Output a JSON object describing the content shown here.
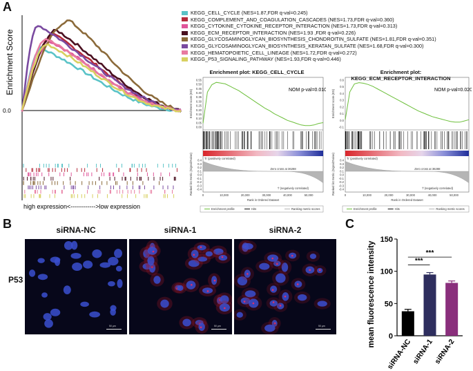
{
  "panels": {
    "a": "A",
    "b": "B",
    "c": "C"
  },
  "panel_a": {
    "ylabel": "Enrichment Score",
    "y_tick": "0.0",
    "xlabel": "high expression<------------>low expression",
    "legend": [
      {
        "label": "KEGG_CELL_CYCLE (NES=1.87,FDR q-val=0.245)",
        "color": "#5ac3c7"
      },
      {
        "label": "KEGG_COMPLEMENT_AND_COAGULATION_CASCADES (NES=1.73,FDR q-val=0.360)",
        "color": "#b52b3c"
      },
      {
        "label": "KEGG_CYTOKINE_CYTOKINE_RECEPTOR_INTERACTION (NES=1.73,FDR q-val=0.313)",
        "color": "#e0559a"
      },
      {
        "label": "KEGG_ECM_RECEPTOR_INTERACTION (NES=1.93 ,FDR q-val=0.226)",
        "color": "#4a1020"
      },
      {
        "label": "KEGG_GLYCOSAMINOGLYCAN_BIOSYNTHESIS_CHONDROITIN_SULFATE (NES=1.81,FDR q-val=0.351)",
        "color": "#8b6a3a"
      },
      {
        "label": "KEGG_GLYCOSAMINOGLYCAN_BIOSYNTHESIS_KERATAN_SULFATE (NES=1.68,FDR q-val=0.300)",
        "color": "#7a4aa0"
      },
      {
        "label": "KEGG_HEMATOPOIETIC_CELL_LINEAGE (NES=1.72,FDR q-val=0.272)",
        "color": "#e87aa0"
      },
      {
        "label": "KEGG_P53_SIGNALING_PATHWAY (NES=1.93,FDR q-val=0.446)",
        "color": "#d8d060"
      }
    ]
  },
  "gsea_plots": [
    {
      "title": "Enrichment plot: KEGG_CELL_CYCLE",
      "pval": "NOM p-val=0.010",
      "es_ylabel": "Enrichment score (ES)",
      "es_ticks": [
        "0.55",
        "0.50",
        "0.45",
        "0.40",
        "0.35",
        "0.30",
        "0.25",
        "0.20",
        "0.15",
        "0.10",
        "0.05",
        "0.00"
      ],
      "es_curve": [
        0,
        0.42,
        0.52,
        0.55,
        0.54,
        0.53,
        0.5,
        0.47,
        0.44,
        0.4,
        0.36,
        0.32,
        0.28,
        0.24,
        0.2,
        0.17,
        0.13,
        0.1,
        0.07,
        0.04,
        0.02,
        0.0,
        -0.02,
        -0.03,
        -0.03,
        -0.02,
        0.0,
        0.01
      ],
      "es_ymin": -0.05,
      "es_ymax": 0.58,
      "pos_label": "'h' (positively correlated)",
      "neg_label": "'l' (negatively correlated)",
      "zero_cross": "Zero cross at 36288",
      "rank_ylabel": "Ranked list metric (Signal2Noise)",
      "rank_ticks": [
        "0.4",
        "0.3",
        "0.2",
        "0.1",
        "0.0",
        "-0.1",
        "-0.2",
        "-0.3",
        "-0.4"
      ],
      "x_ticks": [
        "0",
        "10,000",
        "20,000",
        "30,000",
        "40,000",
        "50,000"
      ],
      "xlabel": "Rank in Ordered Dataset",
      "legend": [
        "Enrichment profile",
        "Hits",
        "Ranking metric scores"
      ]
    },
    {
      "title": "Enrichment plot: KEGG_ECM_RECEPTOR_INTERACTION",
      "pval": "NOM p-val=0.020",
      "es_ylabel": "Enrichment score (ES)",
      "es_ticks": [
        "0.6",
        "0.5",
        "0.4",
        "0.3",
        "0.2",
        "0.1",
        "0.0",
        "-0.1"
      ],
      "es_curve": [
        0,
        0.45,
        0.58,
        0.6,
        0.59,
        0.57,
        0.54,
        0.5,
        0.46,
        0.42,
        0.38,
        0.34,
        0.3,
        0.26,
        0.22,
        0.18,
        0.14,
        0.11,
        0.08,
        0.05,
        0.03,
        0.01,
        -0.01,
        -0.03,
        -0.04,
        -0.04,
        -0.02,
        0.0
      ],
      "es_ymin": -0.12,
      "es_ymax": 0.64,
      "pos_label": "'h' (positively correlated)",
      "neg_label": "'l' (negatively correlated)",
      "zero_cross": "Zero cross at 36288",
      "rank_ylabel": "Ranked list metric (Signal2Noise)",
      "rank_ticks": [
        "0.4",
        "0.3",
        "0.2",
        "0.1",
        "0.0",
        "-0.1",
        "-0.2",
        "-0.3",
        "-0.4"
      ],
      "x_ticks": [
        "0",
        "10,000",
        "20,000",
        "30,000",
        "40,000",
        "50,000"
      ],
      "xlabel": "Rank in Ordered Dataset",
      "legend": [
        "Enrichment profile",
        "Hits",
        "Ranking metric scores"
      ]
    }
  ],
  "panel_b": {
    "row_label": "P53",
    "columns": [
      "siRNA-NC",
      "siRNA-1",
      "siRNA-2"
    ],
    "scalebar": "50 μm"
  },
  "chart_data": {
    "type": "bar",
    "categories": [
      "siRNA-NC",
      "siRNA-1",
      "siRNA-2"
    ],
    "values": [
      38,
      95,
      82
    ],
    "errors": [
      3,
      3,
      3
    ],
    "colors": [
      "#000000",
      "#2e2e5e",
      "#8a2f7c"
    ],
    "ylabel": "mean fluorescence intensity",
    "ylim": [
      0,
      150
    ],
    "y_ticks": [
      "0",
      "50",
      "100",
      "150"
    ],
    "significance": [
      "***",
      "***"
    ]
  }
}
